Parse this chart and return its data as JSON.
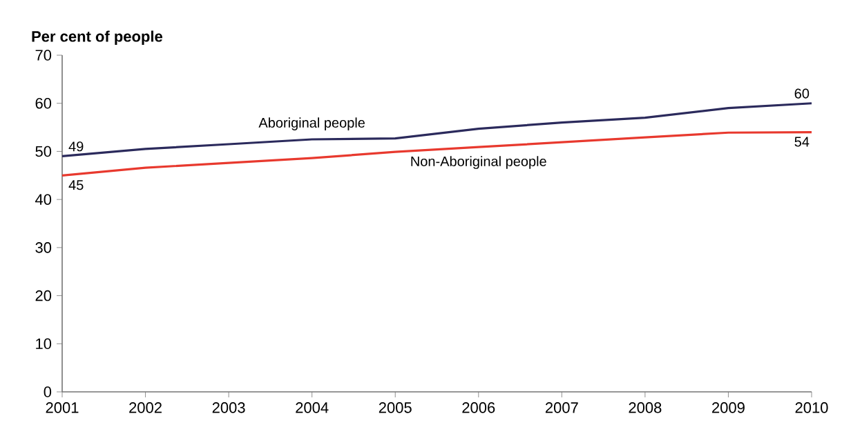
{
  "chart_data": {
    "type": "line",
    "ylabel": "Per cent of people",
    "x": [
      2001,
      2002,
      2003,
      2004,
      2005,
      2006,
      2007,
      2008,
      2009,
      2010
    ],
    "series": [
      {
        "name": "Aboriginal people",
        "color": "#2b2a5c",
        "values": [
          49,
          50.5,
          51.5,
          52.5,
          52.7,
          54.7,
          56,
          57,
          59,
          60
        ],
        "value_labels": [
          "49",
          null,
          null,
          null,
          null,
          null,
          null,
          null,
          null,
          "60"
        ]
      },
      {
        "name": "Non-Aboriginal people",
        "color": "#e8392e",
        "values": [
          45,
          46.6,
          47.6,
          48.6,
          49.9,
          50.9,
          51.9,
          52.9,
          53.9,
          54
        ],
        "value_labels": [
          "45",
          null,
          null,
          null,
          null,
          null,
          null,
          null,
          null,
          "54"
        ]
      }
    ],
    "xlim": [
      2001,
      2010
    ],
    "xticks": [
      2001,
      2002,
      2003,
      2004,
      2005,
      2006,
      2007,
      2008,
      2009,
      2010
    ],
    "ylim": [
      0,
      70
    ],
    "yticks": [
      0,
      10,
      20,
      30,
      40,
      50,
      60,
      70
    ],
    "grid": false,
    "legend": false,
    "marker": "none",
    "line_style": "solid"
  }
}
